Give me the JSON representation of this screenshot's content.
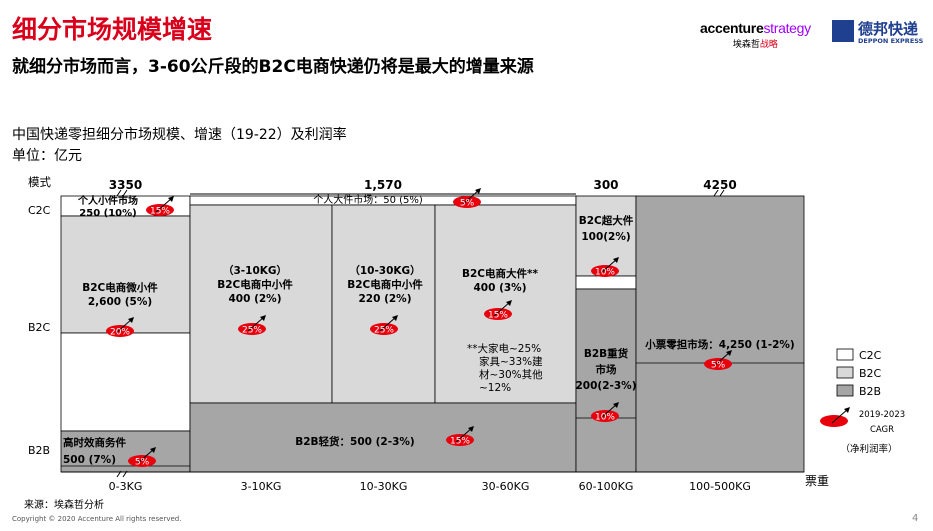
{
  "header": {
    "title": "细分市场规模增速",
    "subtitle": "就细分市场而言，3-60公斤段的B2C电商快递仍将是最大的增量来源"
  },
  "logos": {
    "accenture_main": "accenture",
    "accenture_strategy": "strategy",
    "accenture_sub_black": "埃森哲",
    "accenture_sub_red": "战略",
    "deppon_cn": "德邦快递",
    "deppon_en": "DEPPON EXPRESS"
  },
  "chart_heading": {
    "title": "中国快递零担细分市场规模、增速（19-22）及利润率",
    "unit": "单位：亿元"
  },
  "footer": {
    "source": "来源：埃森哲分析",
    "copyright": "Copyright © 2020 Accenture All rights reserved.",
    "page": "4"
  },
  "colors": {
    "c2c": "#ffffff",
    "b2c": "#d9d9d9",
    "b2b": "#a6a6a6",
    "badge": "#e8000d",
    "title_red": "#d9001b",
    "accenture_purple": "#a100ff",
    "deppon_blue": "#1f3f8f"
  },
  "chart_data": {
    "type": "marimekko",
    "y_axis_title": "模式",
    "x_axis_title": "票重",
    "y_labels": [
      "C2C",
      "B2C",
      "B2B"
    ],
    "columns": [
      {
        "id": "w0",
        "category": "0-3KG",
        "total": "3350"
      },
      {
        "id": "w1",
        "category": "3-10KG",
        "total": ""
      },
      {
        "id": "w2",
        "category": "10-30KG",
        "total": ""
      },
      {
        "id": "w3",
        "category": "30-60KG",
        "total": ""
      },
      {
        "id": "w4",
        "category": "60-100KG",
        "total": "300"
      },
      {
        "id": "w5",
        "category": "100-500KG",
        "total": "4250"
      }
    ],
    "group_totals": [
      {
        "label": "1,570",
        "spans": [
          "3-10KG",
          "10-30KG",
          "30-60KG"
        ]
      }
    ],
    "segments": [
      {
        "id": "s-c2c-small",
        "mode": "C2C",
        "lines": [
          "个人小件市场",
          "250 (10%)"
        ],
        "value": 250,
        "cagr": "10%",
        "margin": "15%"
      },
      {
        "id": "s-b2c-micro",
        "mode": "B2C",
        "lines": [
          "B2C电商微小件",
          "2,600 (5%)"
        ],
        "value": 2600,
        "cagr": "5%",
        "margin": "20%"
      },
      {
        "id": "s-b2b-express",
        "mode": "B2B",
        "lines": [
          "高时效商务件",
          "500 (7%)"
        ],
        "value": 500,
        "cagr": "7%",
        "margin": "5%"
      },
      {
        "id": "s-c2c-large",
        "mode": "C2C",
        "lines": [
          "个人大件市场：50 (5%)"
        ],
        "value": 50,
        "cagr": "5%",
        "margin": "5%"
      },
      {
        "id": "s-b2c-mid-a",
        "mode": "B2C",
        "lines": [
          "（3-10KG）",
          "B2C电商中小件",
          "400 (2%)"
        ],
        "value": 400,
        "cagr": "2%",
        "margin": "25%"
      },
      {
        "id": "s-b2c-mid-b",
        "mode": "B2C",
        "lines": [
          "（10-30KG）",
          "B2C电商中小件",
          "220 (2%)"
        ],
        "value": 220,
        "cagr": "2%",
        "margin": "25%"
      },
      {
        "id": "s-b2c-large",
        "mode": "B2C",
        "lines": [
          "B2C电商大件**",
          "400 (3%)"
        ],
        "value": 400,
        "cagr": "3%",
        "margin": "15%"
      },
      {
        "id": "s-b2b-light",
        "mode": "B2B",
        "lines": [
          "B2B轻货：500 (2-3%)"
        ],
        "value": 500,
        "cagr": "2-3%",
        "margin": "15%"
      },
      {
        "id": "s-b2c-xl",
        "mode": "B2C",
        "lines": [
          "B2C超大件",
          "100(2%)"
        ],
        "value": 100,
        "cagr": "2%",
        "margin": "10%"
      },
      {
        "id": "s-b2b-heavy",
        "mode": "B2B",
        "lines": [
          "B2B重货",
          "市场",
          "200(2-3%)"
        ],
        "value": 200,
        "cagr": "2-3%",
        "margin": "10%"
      },
      {
        "id": "s-ltl",
        "mode": "B2B",
        "lines": [
          "小票零担市场：4,250 (1-2%)"
        ],
        "value": 4250,
        "cagr": "1-2%",
        "margin": "5%"
      }
    ],
    "footnote_lines": [
      "**大家电~25%",
      "家具~33%建",
      "材~30%其他",
      "~12%"
    ],
    "legend": {
      "items": [
        {
          "label": "C2C",
          "color": "#ffffff"
        },
        {
          "label": "B2C",
          "color": "#d9d9d9"
        },
        {
          "label": "B2B",
          "color": "#a6a6a6"
        }
      ],
      "badge_caption": [
        "2019-2023",
        "CAGR"
      ],
      "badge_note": "（净利润率）",
      "position": "right"
    }
  }
}
